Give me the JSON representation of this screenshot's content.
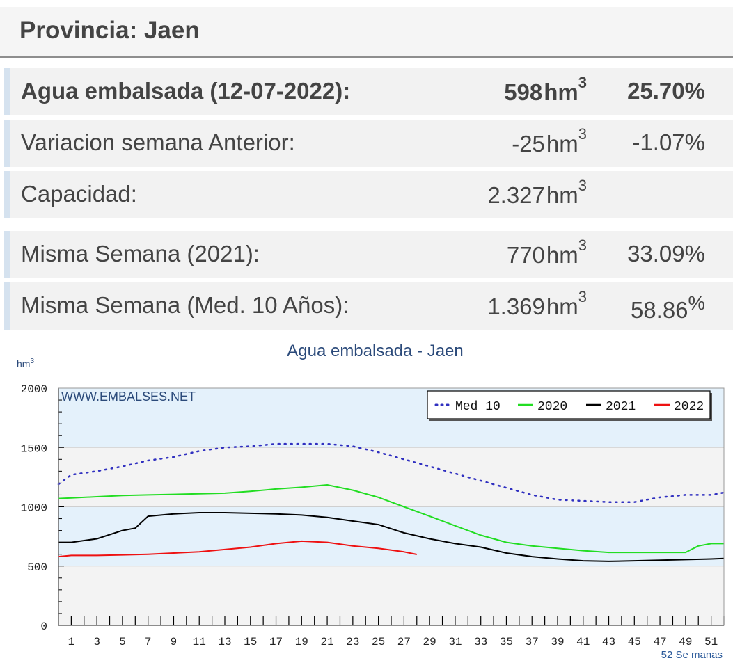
{
  "header": {
    "title": "Provincia: Jaen"
  },
  "rows": [
    {
      "label": "Agua embalsada (12-07-2022):",
      "value": "598",
      "unit": "hm",
      "unit_exp": "3",
      "pct": "25.70",
      "pct_sign": "%"
    },
    {
      "label": "Variacion semana Anterior:",
      "value": "-25",
      "unit": "hm",
      "unit_exp": "3",
      "pct": "-1.07",
      "pct_sign": "%"
    },
    {
      "label": "Capacidad:",
      "value": "2.327",
      "unit": "hm",
      "unit_exp": "3",
      "pct": "",
      "pct_sign": ""
    },
    {
      "label": "Misma Semana (2021):",
      "value": "770",
      "unit": "hm",
      "unit_exp": "3",
      "pct": "33.09",
      "pct_sign": "%"
    },
    {
      "label": "Misma Semana (Med. 10 Años):",
      "value": "1.369",
      "unit": "hm",
      "unit_exp": "3",
      "pct": "58.86",
      "pct_sign": "%"
    }
  ],
  "chart": {
    "watermark": "WWW.EMBALSES.NET",
    "unit_label": "hm",
    "unit_exp": "3",
    "x_caption": "52 Se manas"
  },
  "chart_data": {
    "type": "line",
    "title": "Agua embalsada - Jaen",
    "xlabel": "52 Se manas",
    "ylabel": "hm3",
    "ylim": [
      0,
      2000
    ],
    "xlim": [
      0,
      52
    ],
    "yticks": [
      0,
      500,
      1000,
      1500,
      2000
    ],
    "xticks": [
      1,
      3,
      5,
      7,
      9,
      11,
      13,
      15,
      17,
      19,
      21,
      23,
      25,
      27,
      29,
      31,
      33,
      35,
      37,
      39,
      41,
      43,
      45,
      47,
      49,
      51
    ],
    "band_ranges": [
      [
        500,
        1000
      ],
      [
        1500,
        2000
      ]
    ],
    "legend_position": "top-right",
    "series": [
      {
        "name": "Med 10",
        "color": "#3030c0",
        "style": "dotted",
        "x": [
          0,
          1,
          3,
          5,
          7,
          9,
          11,
          13,
          15,
          17,
          19,
          21,
          23,
          25,
          27,
          29,
          31,
          33,
          35,
          37,
          39,
          41,
          43,
          45,
          47,
          49,
          51,
          52
        ],
        "y": [
          1190,
          1270,
          1300,
          1340,
          1390,
          1420,
          1470,
          1500,
          1510,
          1530,
          1530,
          1530,
          1510,
          1460,
          1400,
          1340,
          1280,
          1220,
          1160,
          1100,
          1060,
          1050,
          1040,
          1040,
          1080,
          1100,
          1100,
          1120
        ]
      },
      {
        "name": "2020",
        "color": "#22dd22",
        "style": "solid",
        "x": [
          0,
          1,
          3,
          5,
          7,
          9,
          11,
          13,
          15,
          17,
          19,
          21,
          23,
          25,
          27,
          29,
          31,
          33,
          35,
          37,
          39,
          41,
          43,
          45,
          47,
          49,
          50,
          51,
          52
        ],
        "y": [
          1070,
          1075,
          1085,
          1095,
          1100,
          1105,
          1110,
          1115,
          1130,
          1150,
          1165,
          1185,
          1140,
          1080,
          1000,
          920,
          840,
          760,
          700,
          670,
          650,
          630,
          615,
          615,
          615,
          615,
          670,
          690,
          690
        ]
      },
      {
        "name": "2021",
        "color": "#000000",
        "style": "solid",
        "x": [
          0,
          1,
          3,
          5,
          6,
          7,
          9,
          11,
          13,
          15,
          17,
          19,
          21,
          23,
          25,
          27,
          29,
          31,
          33,
          35,
          37,
          39,
          41,
          43,
          45,
          47,
          49,
          51,
          52
        ],
        "y": [
          700,
          700,
          730,
          800,
          820,
          920,
          940,
          950,
          950,
          945,
          940,
          930,
          910,
          880,
          850,
          780,
          730,
          690,
          660,
          610,
          580,
          560,
          545,
          540,
          545,
          550,
          555,
          560,
          565
        ]
      },
      {
        "name": "2022",
        "color": "#ee1111",
        "style": "solid",
        "x": [
          0,
          1,
          3,
          5,
          7,
          9,
          11,
          13,
          15,
          17,
          19,
          21,
          23,
          25,
          27,
          28
        ],
        "y": [
          580,
          590,
          590,
          595,
          600,
          610,
          620,
          640,
          660,
          690,
          710,
          700,
          670,
          650,
          620,
          598
        ]
      }
    ]
  }
}
